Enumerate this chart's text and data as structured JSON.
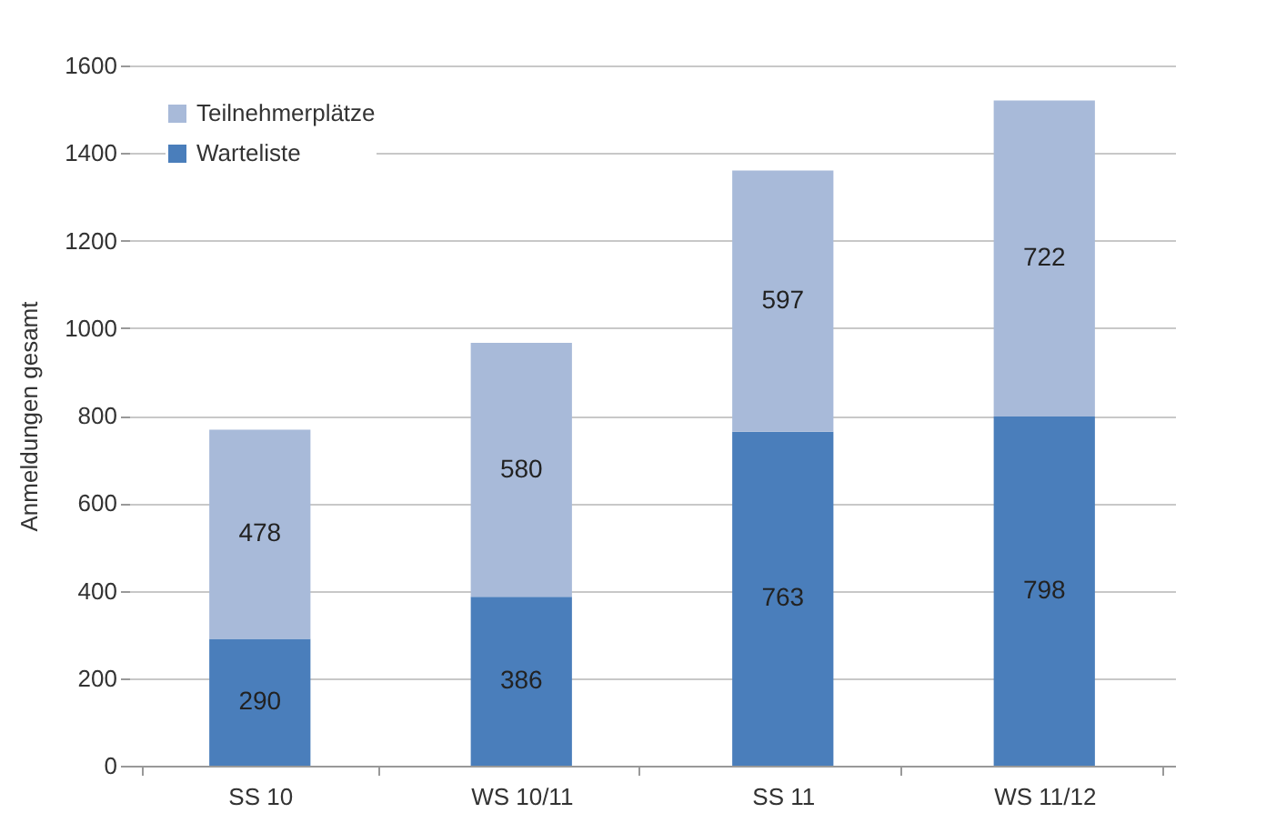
{
  "chart_data": {
    "type": "bar",
    "ylabel": "Anmeldungen gesamt",
    "categories": [
      "SS 10",
      "WS 10/11",
      "SS 11",
      "WS 11/12"
    ],
    "stacked": true,
    "series": [
      {
        "name": "Warteliste",
        "color": "#4a7ebb",
        "values": [
          290,
          386,
          763,
          798
        ]
      },
      {
        "name": "Teilnehmerplätze",
        "color": "#a8bad9",
        "values": [
          478,
          580,
          597,
          722
        ]
      }
    ],
    "ylim": [
      0,
      1600
    ],
    "yticks": [
      0,
      200,
      400,
      600,
      800,
      1000,
      1200,
      1400,
      1600
    ],
    "grid": "y",
    "legend": "top left",
    "data_labels": true
  }
}
